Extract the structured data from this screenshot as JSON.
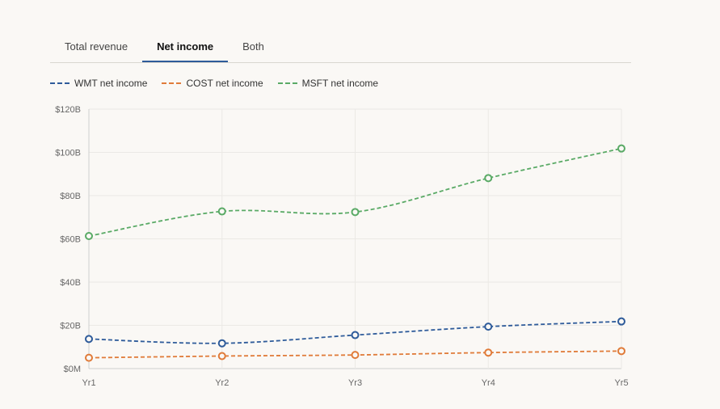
{
  "tabs": [
    {
      "label": "Total revenue",
      "active": false
    },
    {
      "label": "Net income",
      "active": true
    },
    {
      "label": "Both",
      "active": false
    }
  ],
  "colors": {
    "WMT": "#2e5b9a",
    "COST": "#e07b39",
    "MSFT": "#5aaa66"
  },
  "chart_data": {
    "type": "line",
    "title": "",
    "xlabel": "",
    "ylabel": "",
    "x": [
      "Yr1",
      "Yr2",
      "Yr3",
      "Yr4",
      "Yr5"
    ],
    "ylim": [
      0,
      120
    ],
    "yticks": [
      0,
      20,
      40,
      60,
      80,
      100,
      120
    ],
    "ytick_labels": [
      "$0M",
      "$20B",
      "$40B",
      "$60B",
      "$80B",
      "$100B",
      "$120B"
    ],
    "grid": true,
    "legend_position": "top-left",
    "series": [
      {
        "name": "WMT net income",
        "key": "WMT",
        "values": [
          13.7,
          11.7,
          15.5,
          19.4,
          21.8
        ]
      },
      {
        "name": "COST net income",
        "key": "COST",
        "values": [
          5.0,
          5.8,
          6.3,
          7.4,
          8.1
        ]
      },
      {
        "name": "MSFT net income",
        "key": "MSFT",
        "values": [
          61.3,
          72.7,
          72.4,
          88.1,
          101.8
        ]
      }
    ]
  }
}
